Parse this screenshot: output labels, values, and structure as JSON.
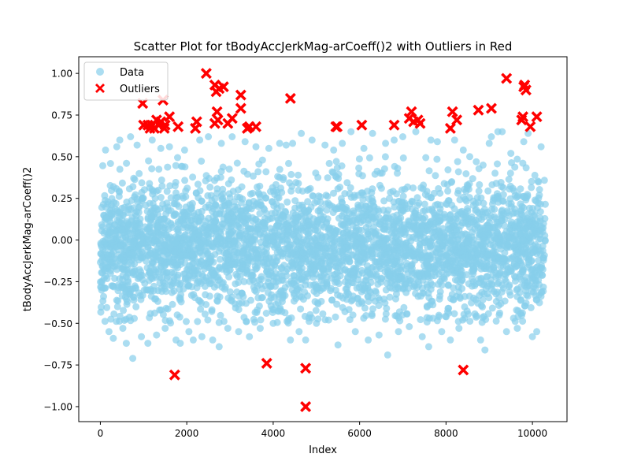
{
  "chart_data": {
    "type": "scatter",
    "title": "Scatter Plot for tBodyAccJerkMag-arCoeff()2 with Outliers in Red",
    "xlabel": "Index",
    "ylabel": "tBodyAccJerkMag-arCoeff()2",
    "xlim": [
      -500,
      10800
    ],
    "ylim": [
      -1.09,
      1.1
    ],
    "x_ticks": [
      0,
      2000,
      4000,
      6000,
      8000,
      10000
    ],
    "y_ticks": [
      -1.0,
      -0.75,
      -0.5,
      -0.25,
      0.0,
      0.25,
      0.5,
      0.75,
      1.0
    ],
    "x_tick_labels": [
      "0",
      "2000",
      "4000",
      "6000",
      "8000",
      "10000"
    ],
    "y_tick_labels": [
      "−1.00",
      "−0.75",
      "−0.50",
      "−0.25",
      "0.00",
      "0.25",
      "0.50",
      "0.75",
      "1.00"
    ],
    "legend": {
      "placement": "top-left",
      "entries": [
        {
          "label": "Data",
          "color": "#87ceeb",
          "marker": "circle"
        },
        {
          "label": "Outliers",
          "color": "#ff0000",
          "marker": "x"
        }
      ]
    },
    "grid": false,
    "colors": {
      "data": "#87ceeb",
      "outliers": "#ff0000"
    },
    "data_series": {
      "name": "Data",
      "count": 10299,
      "x_range": [
        0,
        10299
      ],
      "bulk_y_range": [
        -0.5,
        0.5
      ],
      "points": [
        [
          120,
          0.54
        ],
        [
          200,
          -0.55
        ],
        [
          300,
          -0.59
        ],
        [
          380,
          0.56
        ],
        [
          450,
          0.6
        ],
        [
          520,
          -0.53
        ],
        [
          600,
          -0.62
        ],
        [
          700,
          0.62
        ],
        [
          750,
          -0.71
        ],
        [
          850,
          0.57
        ],
        [
          950,
          -0.58
        ],
        [
          1100,
          -0.62
        ],
        [
          1200,
          0.6
        ],
        [
          1300,
          -0.57
        ],
        [
          1400,
          0.55
        ],
        [
          1500,
          -0.53
        ],
        [
          1600,
          0.56
        ],
        [
          1750,
          -0.6
        ],
        [
          1850,
          -0.62
        ],
        [
          1950,
          0.54
        ],
        [
          2050,
          -0.55
        ],
        [
          2150,
          -0.6
        ],
        [
          2300,
          0.6
        ],
        [
          2350,
          -0.58
        ],
        [
          2500,
          0.62
        ],
        [
          2600,
          -0.6
        ],
        [
          2750,
          -0.64
        ],
        [
          2800,
          0.58
        ],
        [
          2950,
          -0.53
        ],
        [
          3050,
          0.62
        ],
        [
          3200,
          -0.55
        ],
        [
          3350,
          0.59
        ],
        [
          3450,
          -0.58
        ],
        [
          3600,
          0.56
        ],
        [
          3700,
          -0.53
        ],
        [
          3900,
          0.55
        ],
        [
          4000,
          -0.5
        ],
        [
          4150,
          0.58
        ],
        [
          4300,
          0.57
        ],
        [
          4400,
          -0.6
        ],
        [
          4450,
          0.58
        ],
        [
          4600,
          -0.55
        ],
        [
          4650,
          0.64
        ],
        [
          4750,
          -0.6
        ],
        [
          4900,
          0.6
        ],
        [
          5000,
          -0.5
        ],
        [
          5200,
          0.57
        ],
        [
          5400,
          0.54
        ],
        [
          5500,
          -0.63
        ],
        [
          5600,
          0.58
        ],
        [
          5800,
          0.65
        ],
        [
          5900,
          -0.55
        ],
        [
          6100,
          0.55
        ],
        [
          6200,
          -0.6
        ],
        [
          6300,
          0.64
        ],
        [
          6450,
          -0.57
        ],
        [
          6600,
          0.58
        ],
        [
          6650,
          -0.69
        ],
        [
          6800,
          0.6
        ],
        [
          6900,
          -0.55
        ],
        [
          7000,
          0.62
        ],
        [
          7150,
          -0.52
        ],
        [
          7300,
          0.65
        ],
        [
          7450,
          -0.58
        ],
        [
          7600,
          -0.64
        ],
        [
          7650,
          0.6
        ],
        [
          7800,
          0.59
        ],
        [
          7900,
          -0.55
        ],
        [
          8100,
          -0.6
        ],
        [
          8200,
          0.6
        ],
        [
          8300,
          -0.53
        ],
        [
          8400,
          0.54
        ],
        [
          8550,
          0.5
        ],
        [
          8700,
          0.47
        ],
        [
          8800,
          -0.6
        ],
        [
          8900,
          -0.66
        ],
        [
          9000,
          0.58
        ],
        [
          9050,
          0.62
        ],
        [
          9200,
          0.65
        ],
        [
          9300,
          0.65
        ],
        [
          9400,
          -0.55
        ],
        [
          9500,
          0.52
        ],
        [
          9650,
          -0.53
        ],
        [
          9800,
          0.59
        ],
        [
          9900,
          0.64
        ],
        [
          10000,
          -0.58
        ],
        [
          10100,
          -0.55
        ],
        [
          10200,
          0.56
        ]
      ]
    },
    "outliers": {
      "name": "Outliers",
      "points": [
        [
          980,
          0.82
        ],
        [
          1000,
          0.69
        ],
        [
          1100,
          0.69
        ],
        [
          1150,
          0.67
        ],
        [
          1200,
          0.69
        ],
        [
          1250,
          0.67
        ],
        [
          1300,
          0.72
        ],
        [
          1350,
          0.69
        ],
        [
          1400,
          0.71
        ],
        [
          1450,
          0.84
        ],
        [
          1480,
          0.67
        ],
        [
          1500,
          0.69
        ],
        [
          1600,
          0.74
        ],
        [
          1800,
          0.68
        ],
        [
          1720,
          -0.81
        ],
        [
          2200,
          0.67
        ],
        [
          2230,
          0.71
        ],
        [
          2450,
          1.0
        ],
        [
          2650,
          0.93
        ],
        [
          2680,
          0.89
        ],
        [
          2700,
          0.77
        ],
        [
          2650,
          0.7
        ],
        [
          2720,
          0.72
        ],
        [
          2750,
          0.91
        ],
        [
          2850,
          0.92
        ],
        [
          2950,
          0.7
        ],
        [
          3050,
          0.73
        ],
        [
          3250,
          0.87
        ],
        [
          3250,
          0.79
        ],
        [
          3400,
          0.67
        ],
        [
          3450,
          0.68
        ],
        [
          3600,
          0.68
        ],
        [
          3850,
          -0.74
        ],
        [
          4400,
          0.85
        ],
        [
          4750,
          -0.77
        ],
        [
          4750,
          -1.0
        ],
        [
          5450,
          0.68
        ],
        [
          5480,
          0.68
        ],
        [
          6050,
          0.69
        ],
        [
          6800,
          0.69
        ],
        [
          7150,
          0.73
        ],
        [
          7200,
          0.77
        ],
        [
          7250,
          0.71
        ],
        [
          7350,
          0.72
        ],
        [
          7400,
          0.7
        ],
        [
          8100,
          0.67
        ],
        [
          8150,
          0.77
        ],
        [
          8250,
          0.72
        ],
        [
          8400,
          -0.78
        ],
        [
          8750,
          0.78
        ],
        [
          9050,
          0.79
        ],
        [
          9400,
          0.97
        ],
        [
          9750,
          0.72
        ],
        [
          9780,
          0.74
        ],
        [
          9800,
          0.92
        ],
        [
          9820,
          0.93
        ],
        [
          9850,
          0.9
        ],
        [
          9950,
          0.68
        ],
        [
          10100,
          0.74
        ]
      ]
    }
  }
}
